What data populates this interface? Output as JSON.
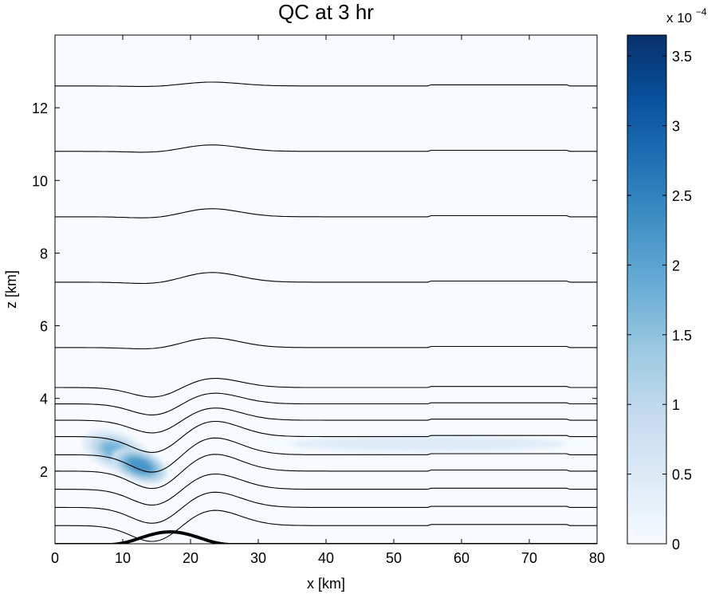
{
  "chart_data": {
    "type": "heatmap",
    "title": "QC at 3 hr",
    "xlabel": "x [km]",
    "ylabel": "z [km]",
    "xlim": [
      0,
      80
    ],
    "ylim": [
      0,
      14
    ],
    "x_ticks": [
      "0",
      "10",
      "20",
      "30",
      "40",
      "50",
      "60",
      "70",
      "80"
    ],
    "y_ticks": [
      "2",
      "4",
      "6",
      "8",
      "10",
      "12"
    ],
    "grid": false,
    "colorbar": {
      "range": [
        0,
        3.65
      ],
      "multiplier": "x 10",
      "exponent": "−4",
      "ticks": [
        "0",
        "0.5",
        "1",
        "1.5",
        "2",
        "2.5",
        "3",
        "3.5"
      ],
      "colormap": "Blues",
      "colors": [
        "#f7fbff",
        "#deebf7",
        "#c6dbef",
        "#9ecae1",
        "#6baed6",
        "#4292c6",
        "#2171b5",
        "#08519c",
        "#08306b"
      ]
    },
    "clouds": [
      {
        "x_center": 9,
        "z_center": 2.55,
        "x_halfwidth": 3.5,
        "z_halfwidth": 0.35,
        "peak": 2.0
      },
      {
        "x_center": 12.5,
        "z_center": 2.15,
        "x_halfwidth": 3.0,
        "z_halfwidth": 0.3,
        "peak": 2.5
      },
      {
        "x_center": 55,
        "z_center": 2.75,
        "x_halfwidth": 18,
        "z_halfwidth": 0.2,
        "peak": 0.7
      }
    ],
    "isentropes": [
      {
        "base_z": 0.5,
        "amplitude": 0.5
      },
      {
        "base_z": 1.0,
        "amplitude": 0.5
      },
      {
        "base_z": 1.5,
        "amplitude": 0.5
      },
      {
        "base_z": 2.0,
        "amplitude": 0.55
      },
      {
        "base_z": 2.45,
        "amplitude": 0.55
      },
      {
        "base_z": 2.95,
        "amplitude": 0.5
      },
      {
        "base_z": 3.4,
        "amplitude": 0.4
      },
      {
        "base_z": 3.85,
        "amplitude": 0.35
      },
      {
        "base_z": 4.3,
        "amplitude": 0.3
      },
      {
        "base_z": 5.4,
        "amplitude": 0.3
      },
      {
        "base_z": 7.2,
        "amplitude": 0.3
      },
      {
        "base_z": 9.0,
        "amplitude": 0.25
      },
      {
        "base_z": 10.8,
        "amplitude": 0.2
      },
      {
        "base_z": 12.6,
        "amplitude": 0.12
      }
    ],
    "terrain": {
      "x_center": 17,
      "halfwidth": 9,
      "height": 0.35
    }
  }
}
